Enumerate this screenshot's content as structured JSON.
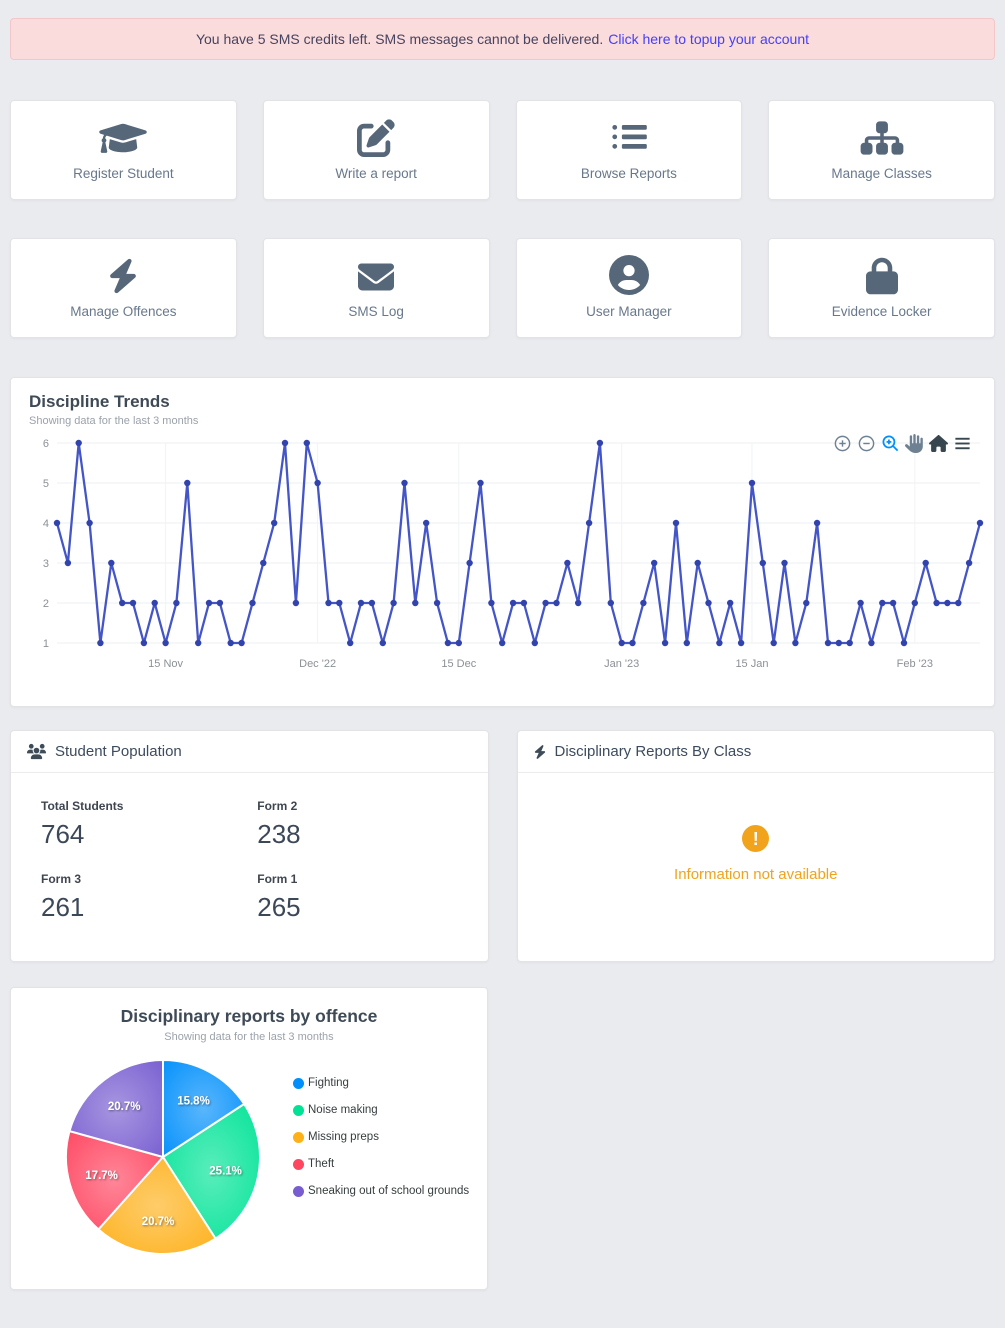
{
  "alert": {
    "message": "You have 5 SMS credits left. SMS messages cannot be delivered.",
    "link_label": "Click here to topup your account"
  },
  "cards": [
    {
      "label": "Register Student",
      "icon": "graduation-cap-icon"
    },
    {
      "label": "Write a report",
      "icon": "pen-square-icon"
    },
    {
      "label": "Browse Reports",
      "icon": "list-icon"
    },
    {
      "label": "Manage Classes",
      "icon": "sitemap-icon"
    },
    {
      "label": "Manage Offences",
      "icon": "bolt-icon"
    },
    {
      "label": "SMS Log",
      "icon": "envelope-icon"
    },
    {
      "label": "User Manager",
      "icon": "user-circle-icon"
    },
    {
      "label": "Evidence Locker",
      "icon": "lock-icon"
    }
  ],
  "toolbar_icons": [
    "zoom-in-icon",
    "zoom-out-icon",
    "selection-zoom-icon",
    "pan-icon",
    "home-icon",
    "menu-icon"
  ],
  "population": {
    "title": "Student Population",
    "stats": [
      {
        "label": "Total Students",
        "value": "764"
      },
      {
        "label": "Form 2",
        "value": "238"
      },
      {
        "label": "Form 3",
        "value": "261"
      },
      {
        "label": "Form 1",
        "value": "265"
      }
    ]
  },
  "byclass": {
    "title": "Disciplinary Reports By Class",
    "message": "Information not available"
  },
  "colors": {
    "accent_line": "#4456c7",
    "marker": "#3243ad",
    "warning": "#f2a31c",
    "alert_bg": "#fadcdc",
    "alert_link": "#4540f5",
    "icon_slate": "#57677a"
  },
  "chart_data": [
    {
      "type": "line",
      "title": "Discipline Trends",
      "subtitle": "Showing data for the last 3 months",
      "ylabel": "",
      "xlabel": "",
      "ylim": [
        1,
        6
      ],
      "yticks": [
        1,
        2,
        3,
        4,
        5,
        6
      ],
      "grid": true,
      "legend_position": "none",
      "line_color": "#4456c7",
      "marker_color": "#3243ad",
      "values": [
        4,
        3,
        6,
        4,
        1,
        3,
        2,
        2,
        1,
        2,
        1,
        2,
        5,
        1,
        2,
        2,
        1,
        1,
        2,
        3,
        4,
        6,
        2,
        6,
        5,
        2,
        2,
        1,
        2,
        2,
        1,
        2,
        5,
        2,
        4,
        2,
        1,
        1,
        3,
        5,
        2,
        1,
        2,
        2,
        1,
        2,
        2,
        3,
        2,
        4,
        6,
        2,
        1,
        1,
        2,
        3,
        1,
        4,
        1,
        3,
        2,
        1,
        2,
        1,
        5,
        3,
        1,
        3,
        1,
        2,
        4,
        1,
        1,
        1,
        2,
        1,
        2,
        2,
        1,
        2,
        3,
        2,
        2,
        2,
        3,
        4
      ],
      "xticks": [
        {
          "i": 10,
          "label": "15 Nov"
        },
        {
          "i": 24,
          "label": "Dec '22"
        },
        {
          "i": 37,
          "label": "15 Dec"
        },
        {
          "i": 52,
          "label": "Jan '23"
        },
        {
          "i": 64,
          "label": "15 Jan"
        },
        {
          "i": 79,
          "label": "Feb '23"
        }
      ]
    },
    {
      "type": "pie",
      "title": "Disciplinary reports by offence",
      "subtitle": "Showing data for the last 3 months",
      "legend_position": "right",
      "slices": [
        {
          "label": "Fighting",
          "pct": 15.8,
          "display": "15.8%",
          "color": "#008FFB"
        },
        {
          "label": "Noise making",
          "pct": 25.1,
          "display": "25.1%",
          "color": "#00E396"
        },
        {
          "label": "Missing preps",
          "pct": 20.7,
          "display": "20.7%",
          "color": "#FEB019"
        },
        {
          "label": "Theft",
          "pct": 17.7,
          "display": "17.7%",
          "color": "#FF4560"
        },
        {
          "label": "Sneaking out of school grounds",
          "pct": 20.7,
          "display": "20.7%",
          "color": "#775DD0"
        }
      ]
    }
  ]
}
